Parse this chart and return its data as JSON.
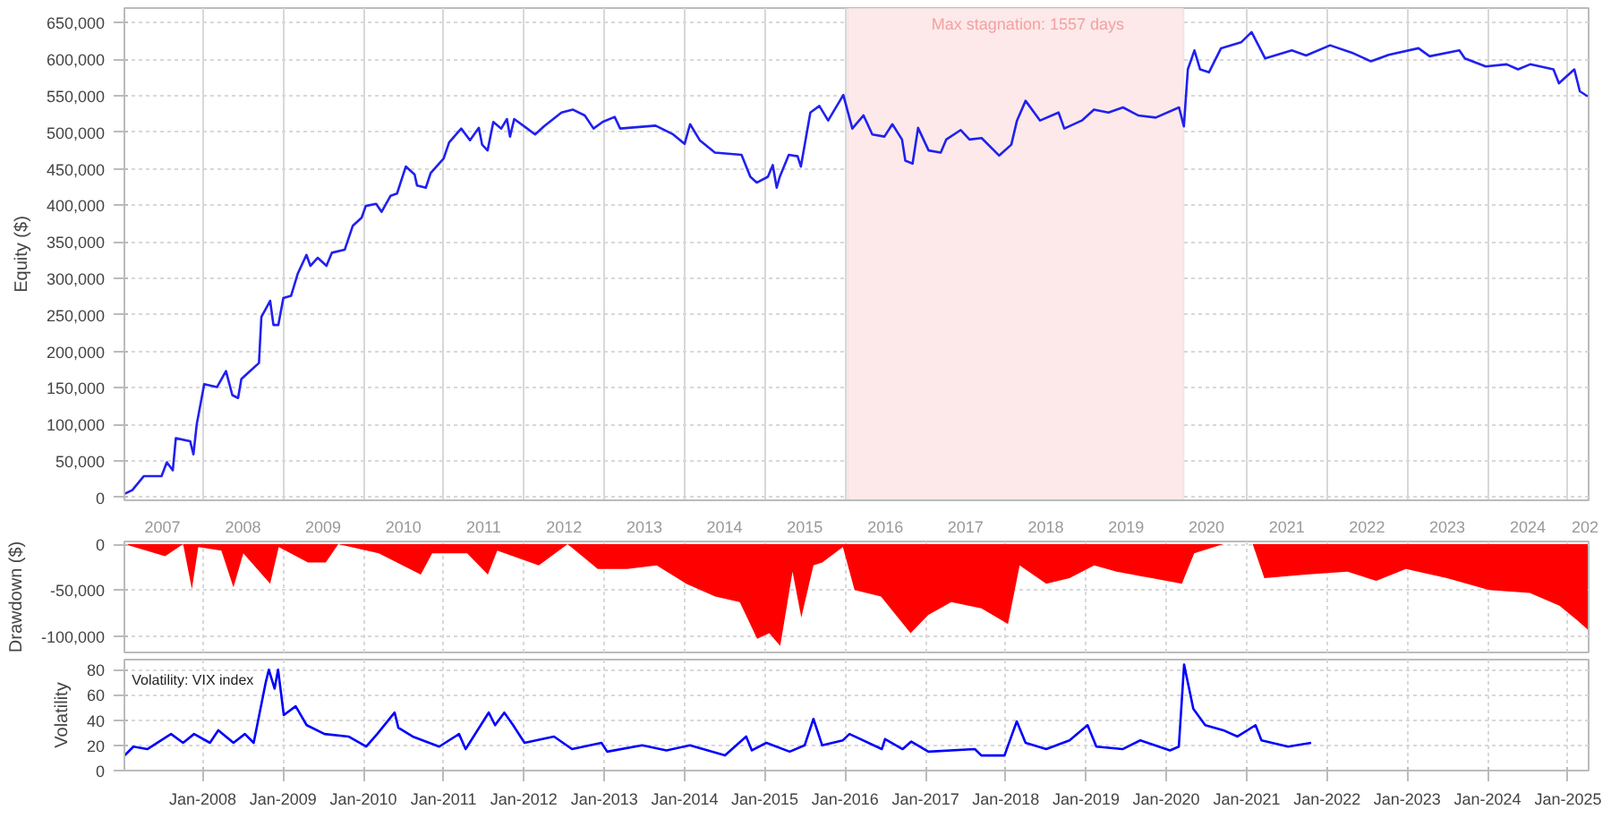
{
  "chart_data": [
    {
      "type": "line",
      "ylabel": "Equity ($)",
      "color": "#2020f0",
      "grid": true,
      "xlim": [
        "2007-01-10",
        "2025-04-05"
      ],
      "ylim": [
        -4000,
        670000
      ],
      "yticks": [
        {
          "value": 0,
          "label": "0"
        },
        {
          "value": 50000,
          "label": "50,000"
        },
        {
          "value": 100000,
          "label": "100,000"
        },
        {
          "value": 150000,
          "label": "150,000"
        },
        {
          "value": 200000,
          "label": "200,000"
        },
        {
          "value": 250000,
          "label": "250,000"
        },
        {
          "value": 300000,
          "label": "300,000"
        },
        {
          "value": 350000,
          "label": "350,000"
        },
        {
          "value": 400000,
          "label": "400,000"
        },
        {
          "value": 450000,
          "label": "450,000"
        },
        {
          "value": 500000,
          "label": "500,000"
        },
        {
          "value": 550000,
          "label": "550,000"
        },
        {
          "value": 600000,
          "label": "600,000"
        },
        {
          "value": 650000,
          "label": "650,000"
        }
      ],
      "xticks": [
        {
          "value": "2007-07-02",
          "label": "2007"
        },
        {
          "value": "2008-07-02",
          "label": "2008"
        },
        {
          "value": "2009-07-02",
          "label": "2009"
        },
        {
          "value": "2010-07-02",
          "label": "2010"
        },
        {
          "value": "2011-07-02",
          "label": "2011"
        },
        {
          "value": "2012-07-02",
          "label": "2012"
        },
        {
          "value": "2013-07-02",
          "label": "2013"
        },
        {
          "value": "2014-07-02",
          "label": "2014"
        },
        {
          "value": "2015-07-02",
          "label": "2015"
        },
        {
          "value": "2016-07-02",
          "label": "2016"
        },
        {
          "value": "2017-07-02",
          "label": "2017"
        },
        {
          "value": "2018-07-02",
          "label": "2018"
        },
        {
          "value": "2019-07-02",
          "label": "2019"
        },
        {
          "value": "2020-07-02",
          "label": "2020"
        },
        {
          "value": "2021-07-02",
          "label": "2021"
        },
        {
          "value": "2022-07-02",
          "label": "2022"
        },
        {
          "value": "2023-07-02",
          "label": "2023"
        },
        {
          "value": "2024-07-02",
          "label": "2024"
        },
        {
          "value": "2025-03-20",
          "label": "202"
        },
        {
          "value": "2008-01-01",
          "label": null
        },
        {
          "value": "2009-01-01",
          "label": null
        },
        {
          "value": "2010-01-01",
          "label": null
        },
        {
          "value": "2011-01-01",
          "label": null
        },
        {
          "value": "2012-01-01",
          "label": null
        },
        {
          "value": "2013-01-01",
          "label": null
        },
        {
          "value": "2014-01-01",
          "label": null
        },
        {
          "value": "2015-01-01",
          "label": null
        },
        {
          "value": "2016-01-01",
          "label": null
        },
        {
          "value": "2017-01-01",
          "label": null
        },
        {
          "value": "2018-01-01",
          "label": null
        },
        {
          "value": "2019-01-01",
          "label": null
        },
        {
          "value": "2020-01-01",
          "label": null
        },
        {
          "value": "2021-01-01",
          "label": null
        },
        {
          "value": "2022-01-01",
          "label": null
        },
        {
          "value": "2023-01-01",
          "label": null
        },
        {
          "value": "2024-01-01",
          "label": null
        },
        {
          "value": "2025-01-01",
          "label": null
        }
      ],
      "bands": [
        {
          "axis": "x",
          "from": "2016-01-12",
          "to": "2020-03-20",
          "label": "Max stagnation: 1557 days",
          "color": "#fde9e9"
        }
      ],
      "x": [
        "2007-01-12",
        "2007-02-15",
        "2007-04-08",
        "2007-06-28",
        "2007-07-22",
        "2007-08-18",
        "2007-09-01",
        "2007-11-05",
        "2007-11-20",
        "2007-12-05",
        "2008-01-08",
        "2008-03-06",
        "2008-04-16",
        "2008-05-15",
        "2008-06-10",
        "2008-06-25",
        "2008-08-04",
        "2008-09-13",
        "2008-09-24",
        "2008-11-03",
        "2008-11-18",
        "2008-12-10",
        "2009-01-02",
        "2009-02-06",
        "2009-03-08",
        "2009-04-17",
        "2009-05-05",
        "2009-06-07",
        "2009-07-17",
        "2009-08-11",
        "2009-10-08",
        "2009-11-14",
        "2009-12-24",
        "2010-01-12",
        "2010-02-28",
        "2010-03-25",
        "2010-05-05",
        "2010-06-03",
        "2010-07-13",
        "2010-08-22",
        "2010-09-02",
        "2010-10-12",
        "2010-11-03",
        "2011-01-01",
        "2011-01-26",
        "2011-03-22",
        "2011-05-01",
        "2011-06-10",
        "2011-06-25",
        "2011-07-20",
        "2011-08-15",
        "2011-09-20",
        "2011-10-16",
        "2011-10-30",
        "2011-11-18",
        "2012-01-12",
        "2012-02-21",
        "2012-04-01",
        "2012-06-20",
        "2012-08-10",
        "2012-10-04",
        "2012-11-13",
        "2012-12-24",
        "2013-02-17",
        "2013-03-14",
        "2013-08-22",
        "2013-11-10",
        "2014-01-01",
        "2014-01-26",
        "2014-03-11",
        "2014-05-19",
        "2014-09-17",
        "2014-10-27",
        "2014-11-25",
        "2015-01-15",
        "2015-02-06",
        "2015-02-24",
        "2015-03-10",
        "2015-04-20",
        "2015-05-30",
        "2015-06-14",
        "2015-07-27",
        "2015-09-06",
        "2015-10-16",
        "2015-12-24",
        "2016-02-03",
        "2016-03-25",
        "2016-05-04",
        "2016-06-28",
        "2016-08-03",
        "2016-09-16",
        "2016-10-01",
        "2016-11-03",
        "2016-11-28",
        "2017-01-15",
        "2017-03-11",
        "2017-04-05",
        "2017-06-10",
        "2017-07-20",
        "2017-09-13",
        "2017-12-02",
        "2018-01-26",
        "2018-02-21",
        "2018-04-01",
        "2018-06-06",
        "2018-08-29",
        "2018-09-24",
        "2018-12-13",
        "2019-02-06",
        "2019-04-13",
        "2019-06-18",
        "2019-08-26",
        "2019-11-14",
        "2020-02-28",
        "2020-03-21",
        "2020-04-08",
        "2020-05-08",
        "2020-06-03",
        "2020-07-13",
        "2020-09-06",
        "2020-12-06",
        "2021-01-23",
        "2021-03-26",
        "2021-07-25",
        "2021-09-28",
        "2022-01-15",
        "2022-05-01",
        "2022-07-20",
        "2022-10-09",
        "2023-02-21",
        "2023-04-13",
        "2023-08-26",
        "2023-09-20",
        "2023-12-24",
        "2024-03-28",
        "2024-05-19",
        "2024-07-13",
        "2024-10-27",
        "2024-11-21",
        "2025-01-30",
        "2025-02-24",
        "2025-04-01"
      ],
      "values": [
        5000,
        10000,
        29000,
        29000,
        48000,
        37000,
        81000,
        77000,
        59000,
        100000,
        155000,
        151000,
        173000,
        140000,
        136000,
        162000,
        173000,
        184000,
        247000,
        269000,
        236000,
        236000,
        273000,
        276000,
        306000,
        332000,
        317000,
        328000,
        317000,
        335000,
        339000,
        372000,
        383000,
        399000,
        402000,
        391000,
        413000,
        416000,
        453000,
        442000,
        427000,
        424000,
        444000,
        464000,
        486000,
        505000,
        489000,
        506000,
        483000,
        475000,
        514000,
        505000,
        518000,
        494000,
        518000,
        506000,
        497000,
        508000,
        527000,
        531000,
        523000,
        505000,
        514000,
        521000,
        505000,
        509000,
        497000,
        484000,
        511000,
        489000,
        472000,
        469000,
        439000,
        431000,
        439000,
        455000,
        424000,
        439000,
        469000,
        467000,
        453000,
        527000,
        536000,
        516000,
        551000,
        505000,
        523000,
        497000,
        494000,
        511000,
        490000,
        461000,
        457000,
        506000,
        475000,
        472000,
        490000,
        503000,
        490000,
        492000,
        468000,
        483000,
        516000,
        543000,
        516000,
        527000,
        505000,
        516000,
        531000,
        527000,
        534000,
        523000,
        520000,
        534000,
        508000,
        586000,
        612000,
        586000,
        582000,
        615000,
        623000,
        637000,
        601000,
        612000,
        605000,
        619000,
        608000,
        597000,
        606000,
        615000,
        604000,
        612000,
        601000,
        590000,
        593000,
        586000,
        593000,
        586000,
        567000,
        586000,
        556000,
        549000
      ]
    },
    {
      "type": "area",
      "ylabel": "Drawdown ($)",
      "color": "#ff0000",
      "grid": true,
      "tick_labels": "y",
      "xlim": [
        "2007-01-10",
        "2025-04-05"
      ],
      "ylim": [
        -118000,
        3000
      ],
      "yticks": [
        {
          "value": 0,
          "label": "0"
        },
        {
          "value": -50000,
          "label": "-50,000"
        },
        {
          "value": -100000,
          "label": "-100,000"
        }
      ],
      "xticks": [
        "2008-01-01",
        "2009-01-01",
        "2010-01-01",
        "2011-01-01",
        "2012-01-01",
        "2013-01-01",
        "2014-01-01",
        "2015-01-01",
        "2016-01-01",
        "2017-01-01",
        "2018-01-01",
        "2019-01-01",
        "2020-01-01",
        "2021-01-01",
        "2022-01-01",
        "2023-01-01",
        "2024-01-01",
        "2025-01-01"
      ],
      "x": [
        "2007-01-11",
        "2007-07-14",
        "2007-10-04",
        "2007-11-13",
        "2007-12-12",
        "2008-03-26",
        "2008-05-20",
        "2008-07-04",
        "2008-11-03",
        "2008-12-12",
        "2009-04-24",
        "2009-07-14",
        "2009-09-09",
        "2010-03-12",
        "2010-09-19",
        "2010-11-10",
        "2011-04-18",
        "2011-07-21",
        "2011-09-02",
        "2012-03-09",
        "2012-07-18",
        "2012-12-02",
        "2013-04-14",
        "2013-08-27",
        "2014-01-08",
        "2014-05-20",
        "2014-09-09",
        "2014-11-27",
        "2015-01-21",
        "2015-03-12",
        "2015-05-07",
        "2015-06-16",
        "2015-08-10",
        "2015-09-19",
        "2015-12-22",
        "2016-02-13",
        "2016-06-12",
        "2016-10-25",
        "2017-01-14",
        "2017-04-28",
        "2017-09-12",
        "2018-01-11",
        "2018-03-05",
        "2018-07-04",
        "2018-10-18",
        "2019-02-07",
        "2019-05-20",
        "2019-10-28",
        "2020-03-12",
        "2020-05-07",
        "2020-09-16",
        "2021-01-28",
        "2021-03-22",
        "2021-09-26",
        "2022-04-04",
        "2022-08-13",
        "2022-12-26",
        "2023-07-01",
        "2024-01-08",
        "2024-07-11",
        "2024-11-23",
        "2025-02-13",
        "2025-04-01"
      ],
      "values": [
        0,
        -13000,
        0,
        -49000,
        -3000,
        -7000,
        -47000,
        -10000,
        -43000,
        -3000,
        -20000,
        -20000,
        0,
        -10000,
        -33000,
        -10000,
        -10000,
        -33000,
        -7000,
        -23000,
        0,
        -27000,
        -27000,
        -23000,
        -43000,
        -57000,
        -63000,
        -103000,
        -97000,
        -111000,
        -30000,
        -80000,
        -23000,
        -20000,
        -3000,
        -50000,
        -57000,
        -97000,
        -77000,
        -63000,
        -70000,
        -87000,
        -23000,
        -43000,
        -37000,
        -23000,
        -30000,
        -37000,
        -43000,
        -10000,
        0,
        0,
        -37000,
        -33000,
        -30000,
        -40000,
        -27000,
        -37000,
        -50000,
        -53000,
        -67000,
        -83000,
        -93000
      ]
    },
    {
      "type": "line",
      "title": "Volatility: VIX index",
      "ylabel": "Volatility",
      "color": "#0000ff",
      "grid": true,
      "xlim": [
        "2007-01-10",
        "2025-04-05"
      ],
      "ylim": [
        0,
        88
      ],
      "yticks": [
        0,
        20,
        40,
        60,
        80
      ],
      "xticks": [
        {
          "value": "2008-01-01",
          "label": "Jan-2008"
        },
        {
          "value": "2009-01-01",
          "label": "Jan-2009"
        },
        {
          "value": "2010-01-01",
          "label": "Jan-2010"
        },
        {
          "value": "2011-01-01",
          "label": "Jan-2011"
        },
        {
          "value": "2012-01-01",
          "label": "Jan-2012"
        },
        {
          "value": "2013-01-01",
          "label": "Jan-2013"
        },
        {
          "value": "2014-01-01",
          "label": "Jan-2014"
        },
        {
          "value": "2015-01-01",
          "label": "Jan-2015"
        },
        {
          "value": "2016-01-01",
          "label": "Jan-2016"
        },
        {
          "value": "2017-01-01",
          "label": "Jan-2017"
        },
        {
          "value": "2018-01-01",
          "label": "Jan-2018"
        },
        {
          "value": "2019-01-01",
          "label": "Jan-2019"
        },
        {
          "value": "2020-01-01",
          "label": "Jan-2020"
        },
        {
          "value": "2021-01-01",
          "label": "Jan-2021"
        },
        {
          "value": "2022-01-01",
          "label": "Jan-2022"
        },
        {
          "value": "2023-01-01",
          "label": "Jan-2023"
        },
        {
          "value": "2024-01-01",
          "label": "Jan-2024"
        },
        {
          "value": "2025-01-01",
          "label": "Jan-2025"
        }
      ],
      "x": [
        "2007-01-11",
        "2007-02-20",
        "2007-04-24",
        "2007-08-10",
        "2007-10-04",
        "2007-11-23",
        "2008-02-03",
        "2008-03-12",
        "2008-05-20",
        "2008-07-11",
        "2008-08-20",
        "2008-10-14",
        "2008-10-28",
        "2008-11-23",
        "2008-12-09",
        "2009-01-04",
        "2009-02-27",
        "2009-04-18",
        "2009-07-08",
        "2009-10-25",
        "2010-01-14",
        "2010-03-05",
        "2010-05-23",
        "2010-06-09",
        "2010-08-13",
        "2010-12-12",
        "2011-03-12",
        "2011-04-11",
        "2011-07-25",
        "2011-08-23",
        "2011-10-04",
        "2011-11-13",
        "2012-01-04",
        "2012-05-17",
        "2012-08-07",
        "2012-12-19",
        "2013-01-14",
        "2013-06-22",
        "2013-10-11",
        "2014-01-25",
        "2014-07-04",
        "2014-10-08",
        "2014-11-03",
        "2015-01-08",
        "2015-04-24",
        "2015-07-01",
        "2015-08-10",
        "2015-09-19",
        "2015-12-22",
        "2016-01-21",
        "2016-06-16",
        "2016-07-01",
        "2016-09-19",
        "2016-10-28",
        "2017-01-14",
        "2017-08-13",
        "2017-09-12",
        "2017-12-26",
        "2018-02-20",
        "2018-04-01",
        "2018-07-04",
        "2018-10-18",
        "2019-01-08",
        "2019-02-17",
        "2019-06-16",
        "2019-09-05",
        "2020-01-18",
        "2020-02-27",
        "2020-03-22",
        "2020-05-03",
        "2020-06-26",
        "2020-09-16",
        "2020-11-20",
        "2021-02-10",
        "2021-03-09",
        "2021-07-08",
        "2021-10-21"
      ],
      "values": [
        12,
        19,
        17,
        29,
        22,
        29,
        22,
        32,
        22,
        29,
        22,
        70,
        80,
        65,
        80,
        44,
        51,
        36,
        29,
        27,
        19,
        29,
        46,
        34,
        27,
        19,
        29,
        17,
        46,
        36,
        46,
        36,
        22,
        27,
        17,
        22,
        15,
        20,
        16,
        20,
        12,
        27,
        16,
        22,
        15,
        20,
        41,
        20,
        24,
        29,
        17,
        25,
        17,
        23,
        15,
        17,
        12,
        12,
        39,
        22,
        17,
        24,
        36,
        19,
        17,
        24,
        16,
        19,
        84,
        49,
        36,
        32,
        27,
        36,
        24,
        19,
        22
      ]
    }
  ]
}
